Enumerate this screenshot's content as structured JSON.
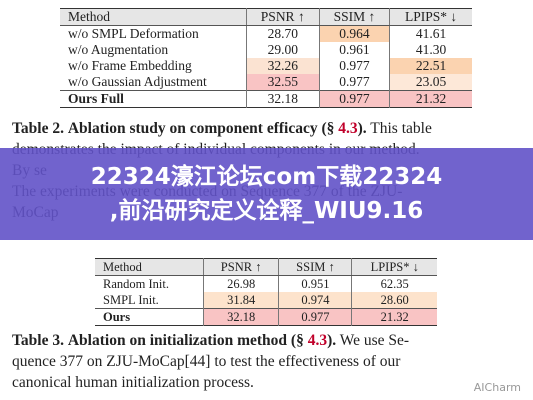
{
  "table2": {
    "header": [
      "Method",
      "PSNR ↑",
      "SSIM ↑",
      "LPIPS* ↓"
    ],
    "rows": [
      [
        "w/o SMPL Deformation",
        "28.70",
        "0.964",
        "41.61"
      ],
      [
        "w/o Augmentation",
        "29.00",
        "0.961",
        "41.30"
      ],
      [
        "w/o Frame Embedding",
        "32.26",
        "0.977",
        "22.51"
      ],
      [
        "w/o Gaussian Adjustment",
        "32.55",
        "0.977",
        "23.05"
      ],
      [
        "Ours Full",
        "32.18",
        "0.977",
        "21.32"
      ]
    ],
    "cell_colors": [
      [
        null,
        null,
        "#fbd3b0",
        null
      ],
      [
        null,
        null,
        null,
        null
      ],
      [
        null,
        "#fbe3d2",
        null,
        "#fbd3b0"
      ],
      [
        null,
        "#f9c4c4",
        null,
        "#fde8d8"
      ],
      [
        null,
        null,
        "#f9c4c4",
        "#f9c4c4"
      ]
    ],
    "caption": {
      "label": "Table 2.",
      "title": "Ablation study on component efficacy (§",
      "ref": "4.3",
      "title_end": ").",
      "lines": [
        "This table",
        "demonstrates the impact of individual components in our method.",
        "By se",
        "The experiments were conducted on Sequence 377 of the ZJU-",
        "MoCap"
      ]
    }
  },
  "banner": {
    "lines": [
      "22324濠江论坛com下载22324",
      ",前沿研究定义诠释_WIU9.16"
    ]
  },
  "table3": {
    "header": [
      "Method",
      "PSNR ↑",
      "SSIM ↑",
      "LPIPS* ↓"
    ],
    "rows": [
      [
        "Random Init.",
        "26.98",
        "0.951",
        "62.35"
      ],
      [
        "SMPL Init.",
        "31.84",
        "0.974",
        "28.60"
      ],
      [
        "Ours",
        "32.18",
        "0.977",
        "21.32"
      ]
    ],
    "cell_colors": [
      [
        null,
        null,
        null,
        null
      ],
      [
        null,
        "#fde3cc",
        "#fde3cc",
        "#fde3cc"
      ],
      [
        null,
        "#f9c4c4",
        "#f9c4c4",
        "#f9c4c4"
      ]
    ],
    "caption": {
      "label": "Table 3.",
      "title": "Ablation on initialization method (§",
      "ref": "4.3",
      "title_end": ").",
      "lines": [
        "We use Se-",
        "quence 377 on ZJU-MoCap[44] to test the effectiveness of our",
        "canonical human initialization process."
      ]
    }
  },
  "watermark": "AICharm"
}
